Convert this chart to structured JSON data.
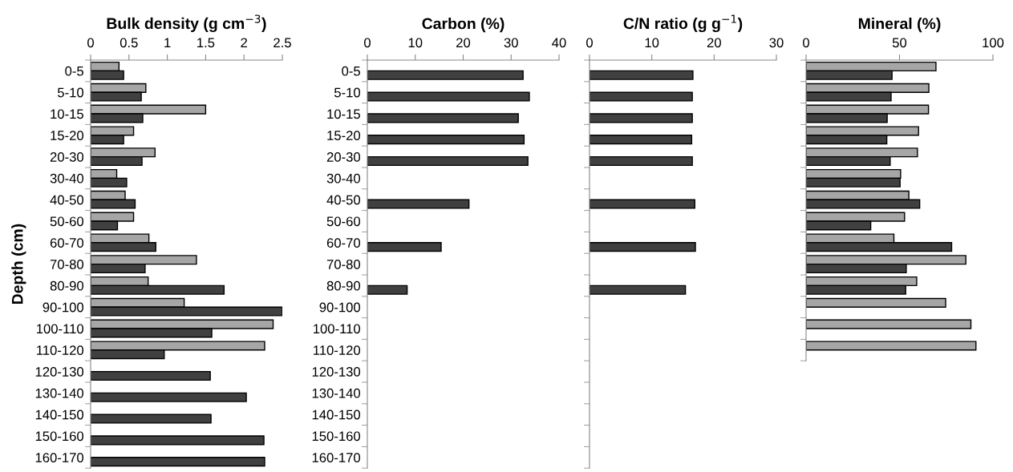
{
  "chart_data": [
    {
      "type": "bar",
      "orientation": "horizontal",
      "title": "Bulk density (g cm$^{−3}$)",
      "ylabel": "Depth (cm)",
      "categories": [
        "0-5",
        "5-10",
        "10-15",
        "15-20",
        "20-30",
        "30-40",
        "40-50",
        "50-60",
        "60-70",
        "70-80",
        "80-90",
        "90-100",
        "100-110",
        "110-120",
        "120-130",
        "130-140",
        "140-150",
        "150-160",
        "160-170"
      ],
      "xlim": [
        0,
        2.5
      ],
      "xticks": [
        0,
        {
          "value": 0.5,
          "label": "0.5"
        },
        1,
        {
          "value": 1.5,
          "label": "1.5"
        },
        2,
        {
          "value": 2.5,
          "label": "2.5"
        }
      ],
      "series": [
        {
          "color": "#a6a6a6",
          "values": [
            0.37,
            0.72,
            1.5,
            0.56,
            0.84,
            0.34,
            0.45,
            0.56,
            0.76,
            1.38,
            0.75,
            1.22,
            2.38,
            2.27,
            null,
            null,
            null,
            null,
            null
          ]
        },
        {
          "color": "#404040",
          "values": [
            0.43,
            0.66,
            0.68,
            0.43,
            0.67,
            0.47,
            0.58,
            0.35,
            0.85,
            0.71,
            1.74,
            2.5,
            1.58,
            0.96,
            1.56,
            2.03,
            1.57,
            2.26,
            2.27
          ]
        }
      ]
    },
    {
      "type": "bar",
      "orientation": "horizontal",
      "title": "Carbon (%)",
      "categories": [
        "0-5",
        "5-10",
        "10-15",
        "15-20",
        "20-30",
        "30-40",
        "40-50",
        "50-60",
        "60-70",
        "70-80",
        "80-90",
        "90-100",
        "100-110",
        "110-120",
        "120-130",
        "130-140",
        "140-150",
        "150-160",
        "160-170"
      ],
      "xlim": [
        0,
        40
      ],
      "xticks": [
        0,
        10,
        20,
        30,
        40
      ],
      "series": [
        {
          "color": "#a6a6a6",
          "values": [
            null,
            null,
            null,
            null,
            null,
            null,
            null,
            null,
            null,
            null,
            null,
            null,
            null,
            null,
            null,
            null,
            null,
            null,
            null
          ]
        },
        {
          "color": "#404040",
          "values": [
            32.5,
            33.8,
            31.5,
            32.7,
            33.5,
            null,
            21.2,
            null,
            15.4,
            null,
            8.3,
            null,
            null,
            null,
            null,
            null,
            null,
            null,
            null
          ]
        }
      ]
    },
    {
      "type": "bar",
      "orientation": "horizontal",
      "title": "C/N ratio (g g$^{−1}$)",
      "categories": [
        null,
        null,
        null,
        null,
        null,
        null,
        null,
        null,
        null,
        null,
        null,
        null,
        null,
        null,
        null,
        null,
        null,
        null,
        null
      ],
      "xlim": [
        0,
        30
      ],
      "xticks": [
        0,
        10,
        20,
        30
      ],
      "series": [
        {
          "color": "#a6a6a6",
          "values": [
            null,
            null,
            null,
            null,
            null,
            null,
            null,
            null,
            null,
            null,
            null,
            null,
            null,
            null,
            null,
            null,
            null,
            null,
            null
          ]
        },
        {
          "color": "#404040",
          "values": [
            16.6,
            16.5,
            16.5,
            16.4,
            16.5,
            null,
            16.9,
            null,
            17.0,
            null,
            15.4,
            null,
            null,
            null,
            null,
            null,
            null,
            null,
            null
          ]
        }
      ]
    },
    {
      "type": "bar",
      "orientation": "horizontal",
      "title": "Mineral (%)",
      "categories": [
        null,
        null,
        null,
        null,
        null,
        null,
        null,
        null,
        null,
        null,
        null,
        null,
        null,
        null
      ],
      "xlim": [
        0,
        100
      ],
      "xticks": [
        0,
        50,
        100
      ],
      "series": [
        {
          "color": "#a6a6a6",
          "values": [
            69.5,
            65.7,
            65.5,
            60.2,
            59.6,
            50.6,
            55.0,
            52.7,
            47.0,
            85.5,
            59.2,
            74.7,
            88.2,
            90.9
          ]
        },
        {
          "color": "#404040",
          "values": [
            46.0,
            45.5,
            43.4,
            43.2,
            45.0,
            50.3,
            60.8,
            34.6,
            77.9,
            53.6,
            53.3,
            null,
            null,
            null
          ]
        }
      ]
    }
  ]
}
